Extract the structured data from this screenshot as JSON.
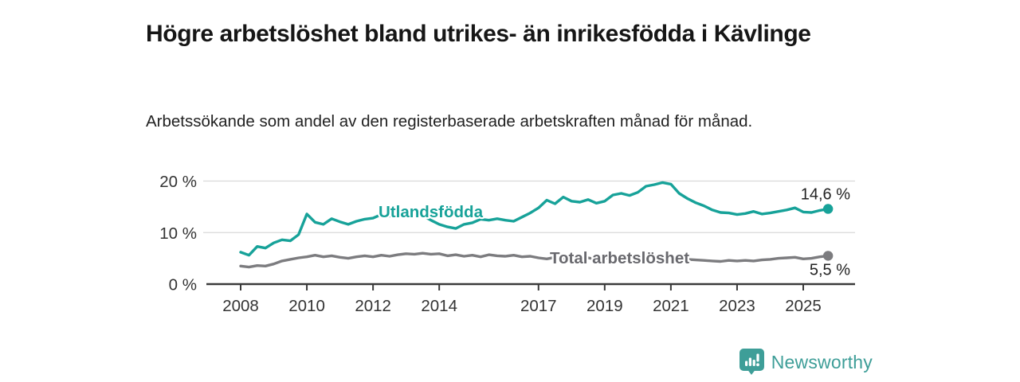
{
  "header": {
    "title": "Högre arbetslöshet bland utrikes- än inrikesfödda i Kävlinge",
    "subtitle": "Arbetssökande som andel av den registerbaserade arbetskraften månad för månad."
  },
  "colors": {
    "accent_teal": "#17A299",
    "series_gray": "#7C7C7F",
    "series_label_gray": "#69696E",
    "axis_dark": "#3A3A3A",
    "grid_light": "#D9D9D9",
    "tick_text": "#333333",
    "end_label_text": "#222222",
    "logo_teal": "#3E9E98"
  },
  "chart_data": {
    "type": "line",
    "title": "Högre arbetslöshet bland utrikes- än inrikesfödda i Kävlinge",
    "xlabel": "",
    "ylabel": "Arbetssökande som andel av den registerbaserade arbetskraften",
    "ylim": [
      0,
      20
    ],
    "xlim": [
      2007.9,
      2026.5
    ],
    "grid": "horizontal",
    "legend_position": "inline-labels",
    "y_ticks": [
      {
        "value": 0,
        "label": "0 %"
      },
      {
        "value": 10,
        "label": "10 %"
      },
      {
        "value": 20,
        "label": "20 %"
      }
    ],
    "x_ticks": [
      {
        "value": 2008,
        "label": "2008"
      },
      {
        "value": 2010,
        "label": "2010"
      },
      {
        "value": 2012,
        "label": "2012"
      },
      {
        "value": 2014,
        "label": "2014"
      },
      {
        "value": 2017,
        "label": "2017"
      },
      {
        "value": 2019,
        "label": "2019"
      },
      {
        "value": 2021,
        "label": "2021"
      },
      {
        "value": 2023,
        "label": "2023"
      },
      {
        "value": 2025,
        "label": "2025"
      }
    ],
    "series": [
      {
        "name": "Utlandsfödda",
        "color": "#17A299",
        "end_label": "14,6 %",
        "end_value": 14.6,
        "x_start": 2008.0,
        "x_step": 0.25,
        "values": [
          6.2,
          5.6,
          7.3,
          7.0,
          8.0,
          8.6,
          8.4,
          9.6,
          13.6,
          12.0,
          11.6,
          12.7,
          12.1,
          11.6,
          12.2,
          12.6,
          12.8,
          13.5,
          13.2,
          13.8,
          13.9,
          13.6,
          13.3,
          12.4,
          11.6,
          11.1,
          10.8,
          11.6,
          11.9,
          12.6,
          12.4,
          12.7,
          12.4,
          12.2,
          13.0,
          13.8,
          14.8,
          16.3,
          15.6,
          16.9,
          16.1,
          15.9,
          16.4,
          15.7,
          16.1,
          17.3,
          17.6,
          17.2,
          17.8,
          19.0,
          19.3,
          19.7,
          19.4,
          17.6,
          16.6,
          15.8,
          15.2,
          14.4,
          13.9,
          13.8,
          13.5,
          13.7,
          14.1,
          13.6,
          13.8,
          14.1,
          14.4,
          14.8,
          14.0,
          13.9,
          14.3,
          14.6
        ]
      },
      {
        "name": "Total arbetslöshet",
        "color": "#7C7C7F",
        "end_label": "5,5 %",
        "end_value": 5.5,
        "x_start": 2008.0,
        "x_step": 0.25,
        "values": [
          3.5,
          3.3,
          3.6,
          3.5,
          3.9,
          4.5,
          4.8,
          5.1,
          5.3,
          5.6,
          5.3,
          5.5,
          5.2,
          5.0,
          5.3,
          5.5,
          5.3,
          5.6,
          5.4,
          5.7,
          5.9,
          5.8,
          6.0,
          5.8,
          5.9,
          5.5,
          5.7,
          5.4,
          5.6,
          5.3,
          5.7,
          5.5,
          5.4,
          5.6,
          5.3,
          5.4,
          5.1,
          4.9,
          5.2,
          5.0,
          5.2,
          4.9,
          5.1,
          4.8,
          5.1,
          5.0,
          5.2,
          5.1,
          5.4,
          5.7,
          5.5,
          5.3,
          5.1,
          4.9,
          4.8,
          4.7,
          4.6,
          4.5,
          4.4,
          4.6,
          4.5,
          4.6,
          4.5,
          4.7,
          4.8,
          5.0,
          5.1,
          5.2,
          4.9,
          5.0,
          5.3,
          5.5
        ]
      }
    ]
  },
  "logo": {
    "name": "Newsworthy",
    "icon": "newsworthy-chart-bubble-icon"
  }
}
